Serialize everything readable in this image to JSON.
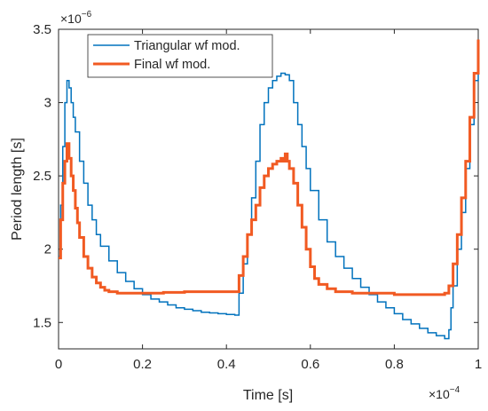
{
  "chart_data": {
    "type": "line",
    "title": "",
    "xlabel": "Time [s]",
    "ylabel": "Period length [s]",
    "x_multiplier_label": "×10",
    "x_multiplier_exp": "−4",
    "y_multiplier_label": "×10",
    "y_multiplier_exp": "−6",
    "xlim": [
      0,
      1.0
    ],
    "ylim": [
      1.32,
      3.5
    ],
    "x_ticks": [
      "0",
      "0.2",
      "0.4",
      "0.6",
      "0.8",
      "1"
    ],
    "x_tick_values": [
      0,
      0.2,
      0.4,
      0.6,
      0.8,
      1.0
    ],
    "y_ticks": [
      "1.5",
      "2",
      "2.5",
      "3",
      "3.5"
    ],
    "y_tick_values": [
      1.5,
      2.0,
      2.5,
      3.0,
      3.5
    ],
    "grid": false,
    "legend_position": "top-left",
    "series": [
      {
        "name": "Triangular wf mod.",
        "color": "#0072BD",
        "x": [
          0,
          0.005,
          0.01,
          0.015,
          0.02,
          0.025,
          0.03,
          0.035,
          0.04,
          0.05,
          0.06,
          0.07,
          0.08,
          0.09,
          0.1,
          0.12,
          0.14,
          0.16,
          0.18,
          0.2,
          0.22,
          0.24,
          0.26,
          0.28,
          0.3,
          0.32,
          0.34,
          0.36,
          0.38,
          0.4,
          0.42,
          0.43,
          0.44,
          0.45,
          0.46,
          0.47,
          0.48,
          0.49,
          0.5,
          0.51,
          0.52,
          0.53,
          0.54,
          0.55,
          0.56,
          0.57,
          0.58,
          0.59,
          0.6,
          0.62,
          0.64,
          0.66,
          0.68,
          0.7,
          0.72,
          0.74,
          0.76,
          0.78,
          0.8,
          0.82,
          0.84,
          0.86,
          0.88,
          0.9,
          0.92,
          0.93,
          0.935,
          0.94,
          0.95,
          0.96,
          0.97,
          0.98,
          0.99,
          1.0
        ],
        "y": [
          1.95,
          2.3,
          2.7,
          3.0,
          3.15,
          3.1,
          3.0,
          2.9,
          2.8,
          2.6,
          2.45,
          2.3,
          2.2,
          2.1,
          2.02,
          1.92,
          1.84,
          1.78,
          1.73,
          1.69,
          1.66,
          1.64,
          1.62,
          1.6,
          1.59,
          1.58,
          1.57,
          1.565,
          1.56,
          1.555,
          1.55,
          1.7,
          1.9,
          2.1,
          2.35,
          2.6,
          2.85,
          3.0,
          3.1,
          3.15,
          3.18,
          3.2,
          3.19,
          3.15,
          3.0,
          2.85,
          2.7,
          2.55,
          2.4,
          2.2,
          2.05,
          1.95,
          1.87,
          1.8,
          1.74,
          1.69,
          1.64,
          1.6,
          1.56,
          1.52,
          1.49,
          1.46,
          1.43,
          1.41,
          1.39,
          1.45,
          1.6,
          1.75,
          2.0,
          2.25,
          2.55,
          2.85,
          3.15,
          3.42
        ]
      },
      {
        "name": "Final wf mod.",
        "color": "#F15A22",
        "x": [
          0,
          0.005,
          0.01,
          0.015,
          0.02,
          0.025,
          0.03,
          0.035,
          0.04,
          0.045,
          0.05,
          0.06,
          0.07,
          0.08,
          0.09,
          0.1,
          0.11,
          0.12,
          0.14,
          0.16,
          0.18,
          0.2,
          0.25,
          0.3,
          0.35,
          0.4,
          0.42,
          0.43,
          0.44,
          0.45,
          0.46,
          0.47,
          0.48,
          0.49,
          0.5,
          0.51,
          0.52,
          0.53,
          0.535,
          0.54,
          0.545,
          0.55,
          0.56,
          0.57,
          0.58,
          0.59,
          0.6,
          0.61,
          0.62,
          0.64,
          0.66,
          0.68,
          0.7,
          0.75,
          0.8,
          0.85,
          0.9,
          0.92,
          0.93,
          0.94,
          0.95,
          0.96,
          0.97,
          0.98,
          0.99,
          1.0
        ],
        "y": [
          1.94,
          2.2,
          2.45,
          2.6,
          2.72,
          2.62,
          2.5,
          2.4,
          2.28,
          2.18,
          2.08,
          1.95,
          1.87,
          1.81,
          1.77,
          1.74,
          1.72,
          1.71,
          1.7,
          1.7,
          1.7,
          1.7,
          1.705,
          1.71,
          1.71,
          1.71,
          1.71,
          1.82,
          1.95,
          2.1,
          2.2,
          2.3,
          2.42,
          2.5,
          2.55,
          2.58,
          2.6,
          2.62,
          2.6,
          2.65,
          2.6,
          2.55,
          2.45,
          2.3,
          2.15,
          2.0,
          1.88,
          1.8,
          1.76,
          1.73,
          1.71,
          1.71,
          1.7,
          1.7,
          1.69,
          1.69,
          1.69,
          1.7,
          1.75,
          1.9,
          2.1,
          2.35,
          2.6,
          2.9,
          3.2,
          3.43
        ]
      }
    ]
  }
}
